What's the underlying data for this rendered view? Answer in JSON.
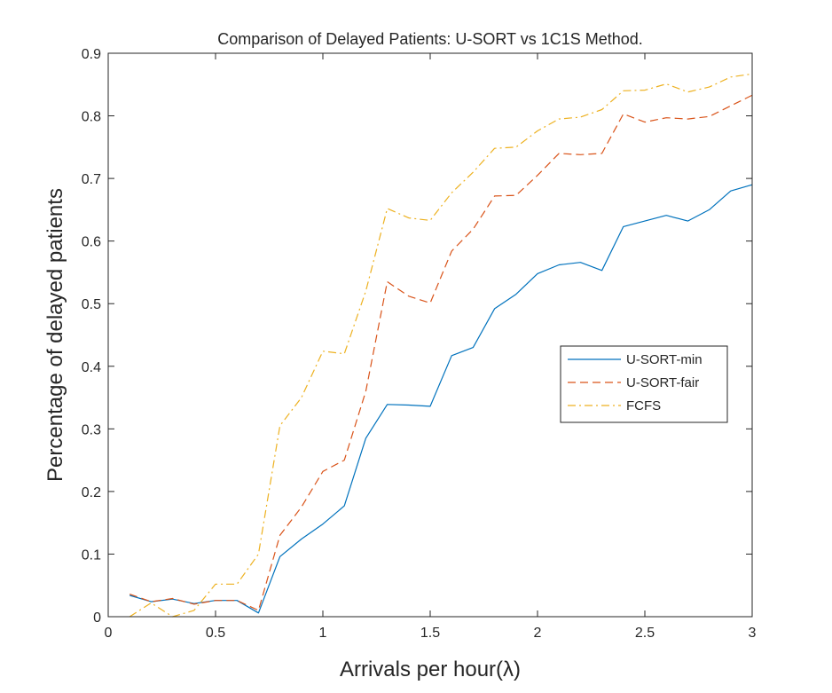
{
  "chart_data": {
    "type": "line",
    "title": "Comparison of Delayed Patients: U-SORT vs 1C1S Method.",
    "xlabel": "Arrivals per hour(λ)",
    "ylabel": "Percentage of delayed patients",
    "xlim": [
      0,
      3
    ],
    "ylim": [
      0,
      0.9
    ],
    "xticks": [
      0,
      0.5,
      1,
      1.5,
      2,
      2.5,
      3
    ],
    "xtick_labels": [
      "0",
      "0.5",
      "1",
      "1.5",
      "2",
      "2.5",
      "3"
    ],
    "yticks": [
      0,
      0.1,
      0.2,
      0.3,
      0.4,
      0.5,
      0.6,
      0.7,
      0.8,
      0.9
    ],
    "ytick_labels": [
      "0",
      "0.1",
      "0.2",
      "0.3",
      "0.4",
      "0.5",
      "0.6",
      "0.7",
      "0.8",
      "0.9"
    ],
    "grid": false,
    "legend_position": "right",
    "x": [
      0.1,
      0.2,
      0.3,
      0.4,
      0.5,
      0.6,
      0.7,
      0.8,
      0.9,
      1.0,
      1.1,
      1.2,
      1.3,
      1.4,
      1.5,
      1.6,
      1.7,
      1.8,
      1.9,
      2.0,
      2.1,
      2.2,
      2.3,
      2.4,
      2.5,
      2.6,
      2.7,
      2.8,
      2.9,
      3.0
    ],
    "series": [
      {
        "name": "U-SORT-min",
        "color": "#0072BD",
        "dash": "solid",
        "values": [
          0.034,
          0.024,
          0.028,
          0.021,
          0.026,
          0.026,
          0.006,
          0.096,
          0.124,
          0.148,
          0.177,
          0.285,
          0.339,
          0.338,
          0.336,
          0.417,
          0.43,
          0.492,
          0.515,
          0.548,
          0.562,
          0.566,
          0.553,
          0.623,
          0.632,
          0.641,
          0.632,
          0.65,
          0.68,
          0.69
        ]
      },
      {
        "name": "U-SORT-fair",
        "color": "#D95319",
        "dash": "dashed",
        "values": [
          0.036,
          0.024,
          0.029,
          0.02,
          0.026,
          0.026,
          0.01,
          0.13,
          0.175,
          0.232,
          0.25,
          0.36,
          0.535,
          0.512,
          0.501,
          0.584,
          0.619,
          0.672,
          0.673,
          0.705,
          0.74,
          0.738,
          0.74,
          0.803,
          0.79,
          0.797,
          0.795,
          0.799,
          0.816,
          0.833
        ]
      },
      {
        "name": "FCFS",
        "color": "#EDB120",
        "dash": "dashdot",
        "values": [
          0.0,
          0.022,
          0.0,
          0.01,
          0.052,
          0.052,
          0.1,
          0.305,
          0.35,
          0.424,
          0.42,
          0.52,
          0.652,
          0.637,
          0.633,
          0.677,
          0.71,
          0.748,
          0.75,
          0.776,
          0.795,
          0.798,
          0.81,
          0.84,
          0.841,
          0.851,
          0.838,
          0.846,
          0.862,
          0.867
        ]
      }
    ]
  }
}
